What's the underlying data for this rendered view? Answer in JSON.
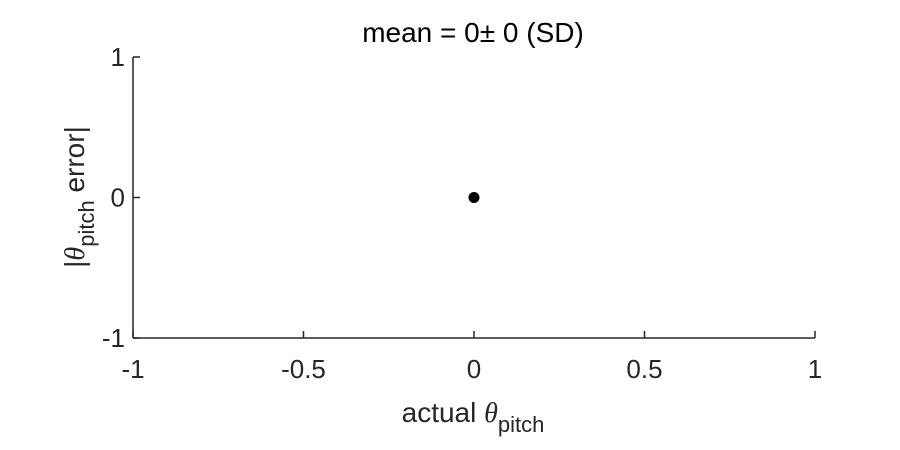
{
  "chart_data": {
    "type": "scatter",
    "title": {
      "prefix": "mean = ",
      "mean": "0",
      "pm": "±",
      "sd": " 0",
      "suffix": " (SD)"
    },
    "xlabel": {
      "text": "actual ",
      "symbol": "θ",
      "subscript": "pitch"
    },
    "ylabel": {
      "prefix": "|",
      "symbol": "θ",
      "subscript": "pitch",
      "text": " error|"
    },
    "xlim": [
      -1,
      1
    ],
    "ylim": [
      -1,
      1
    ],
    "xticks": [
      -1,
      -0.5,
      0,
      0.5,
      1
    ],
    "xtick_labels": [
      "-1",
      "-0.5",
      "0",
      "0.5",
      "1"
    ],
    "yticks": [
      -1,
      0,
      1
    ],
    "ytick_labels": [
      "-1",
      "0",
      "1"
    ],
    "grid": false,
    "series": [
      {
        "points": [
          {
            "x": 0,
            "y": 0
          }
        ],
        "color": "#000000"
      }
    ],
    "axis_color": "#262626"
  }
}
